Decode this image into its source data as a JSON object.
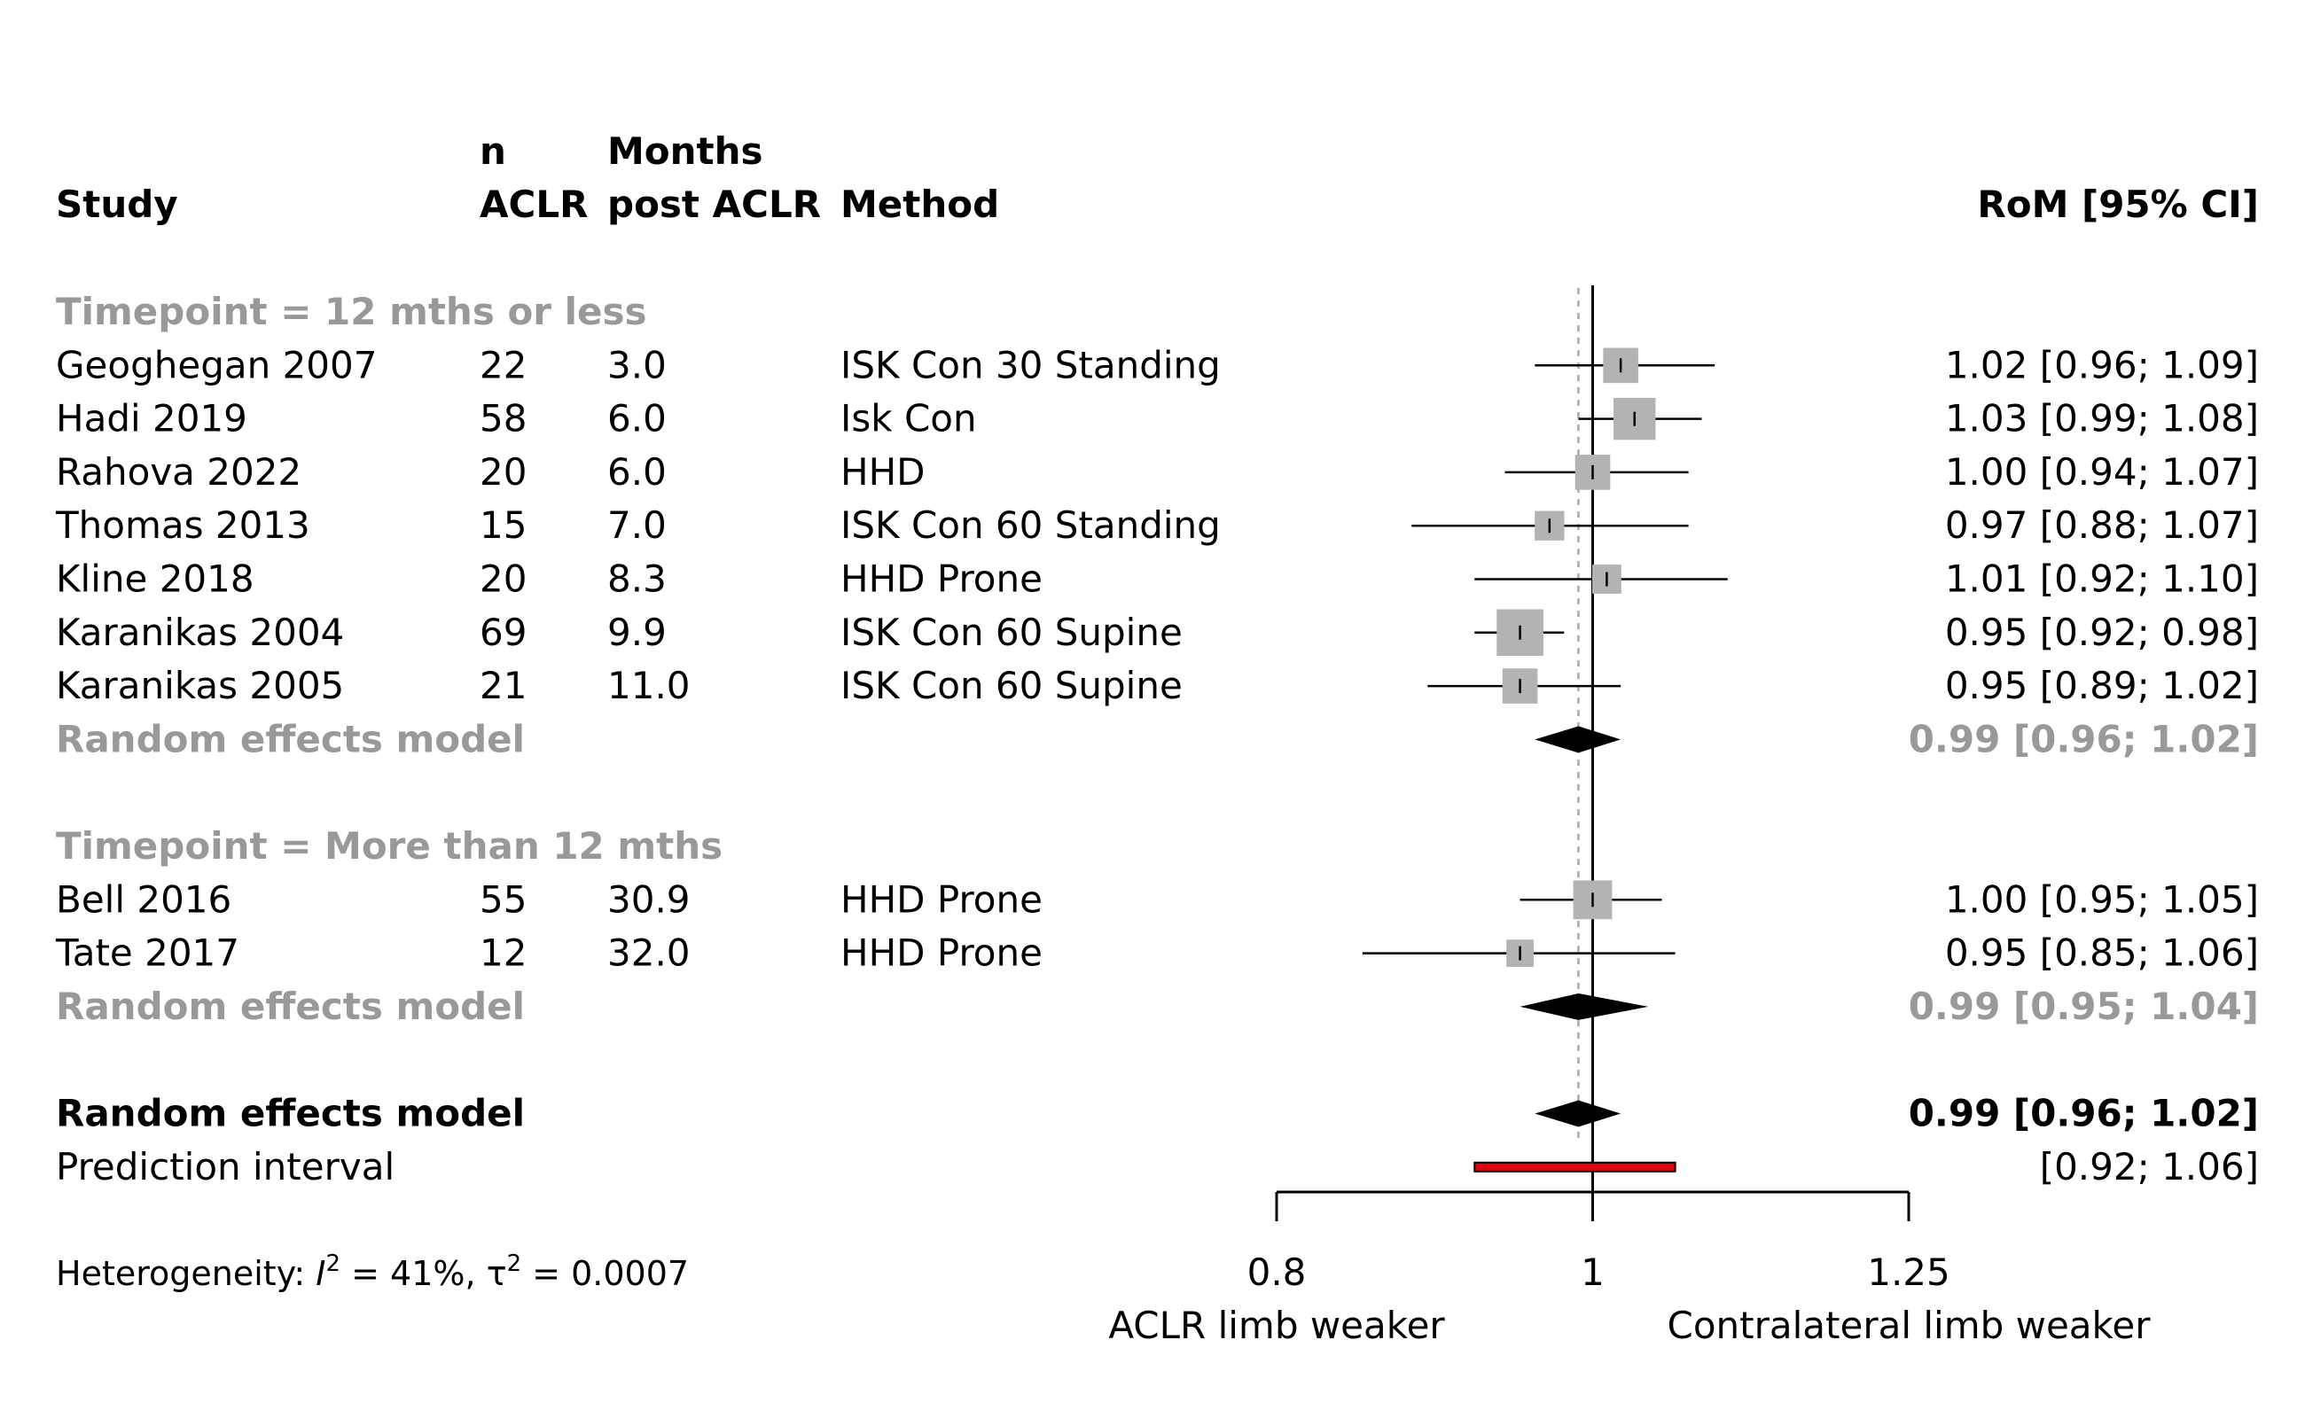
{
  "chart_data": {
    "type": "forest",
    "headers": {
      "study": "Study",
      "n_line1": "n",
      "n_line2": "ACLR",
      "months_line1": "Months",
      "months_line2": "post ACLR",
      "method": "Method",
      "effect": "RoM [95% CI]"
    },
    "x_axis": {
      "scale": "log",
      "ticks": [
        0.8,
        1,
        1.25
      ],
      "tick_labels": [
        "0.8",
        "1",
        "1.25"
      ],
      "xlim": [
        0.8,
        1.25
      ],
      "left_label": "ACLR limb weaker",
      "right_label": "Contralateral limb weaker",
      "null_line": 1
    },
    "groups": [
      {
        "label": "Timepoint = 12 mths or less",
        "studies": [
          {
            "study": "Geoghegan 2007",
            "n": "22",
            "months": "3.0",
            "method": "ISK Con 30 Standing",
            "est": 1.02,
            "lo": 0.96,
            "hi": 1.09,
            "weight": 3.0,
            "ci_text": "1.02 [0.96; 1.09]"
          },
          {
            "study": "Hadi 2019",
            "n": "58",
            "months": "6.0",
            "method": "Isk Con",
            "est": 1.03,
            "lo": 0.99,
            "hi": 1.08,
            "weight": 4.5,
            "ci_text": "1.03 [0.99; 1.08]"
          },
          {
            "study": "Rahova 2022",
            "n": "20",
            "months": "6.0",
            "method": "HHD",
            "est": 1.0,
            "lo": 0.94,
            "hi": 1.07,
            "weight": 3.0,
            "ci_text": "1.00 [0.94; 1.07]"
          },
          {
            "study": "Thomas 2013",
            "n": "15",
            "months": "7.0",
            "method": "ISK Con 60 Standing",
            "est": 0.97,
            "lo": 0.88,
            "hi": 1.07,
            "weight": 1.8,
            "ci_text": "0.97 [0.88; 1.07]"
          },
          {
            "study": "Kline 2018",
            "n": "20",
            "months": "8.3",
            "method": "HHD Prone",
            "est": 1.01,
            "lo": 0.92,
            "hi": 1.1,
            "weight": 1.7,
            "ci_text": "1.01 [0.92; 1.10]"
          },
          {
            "study": "Karanikas 2004",
            "n": "69",
            "months": "9.9",
            "method": "ISK Con 60 Supine",
            "est": 0.95,
            "lo": 0.92,
            "hi": 0.98,
            "weight": 5.5,
            "ci_text": "0.95 [0.92; 0.98]"
          },
          {
            "study": "Karanikas 2005",
            "n": "21",
            "months": "11.0",
            "method": "ISK Con 60 Supine",
            "est": 0.95,
            "lo": 0.89,
            "hi": 1.02,
            "weight": 3.0,
            "ci_text": "0.95 [0.89; 1.02]"
          }
        ],
        "pooled": {
          "label": "Random effects model",
          "est": 0.99,
          "lo": 0.96,
          "hi": 1.02,
          "ci_text": "0.99 [0.96; 1.02]"
        }
      },
      {
        "label": "Timepoint = More than 12 mths",
        "studies": [
          {
            "study": "Bell 2016",
            "n": "55",
            "months": "30.9",
            "method": "HHD Prone",
            "est": 1.0,
            "lo": 0.95,
            "hi": 1.05,
            "weight": 3.8,
            "ci_text": "1.00 [0.95; 1.05]"
          },
          {
            "study": "Tate 2017",
            "n": "12",
            "months": "32.0",
            "method": "HHD Prone",
            "est": 0.95,
            "lo": 0.85,
            "hi": 1.06,
            "weight": 1.3,
            "ci_text": "0.95 [0.85; 1.06]"
          }
        ],
        "pooled": {
          "label": "Random effects model",
          "est": 0.99,
          "lo": 0.95,
          "hi": 1.04,
          "ci_text": "0.99 [0.95; 1.04]"
        }
      }
    ],
    "overall": {
      "label": "Random effects model",
      "est": 0.99,
      "lo": 0.96,
      "hi": 1.02,
      "ci_text": "0.99 [0.96; 1.02]"
    },
    "prediction_interval": {
      "label": "Prediction interval",
      "lo": 0.92,
      "hi": 1.06,
      "ci_text": "[0.92; 1.06]"
    },
    "heterogeneity": {
      "prefix": "Heterogeneity: ",
      "i2_symbol": "I",
      "i2_value": " = 41%, ",
      "tau2_symbol": "τ",
      "tau2_value": " = 0.0007",
      "superscript": "2"
    },
    "colors": {
      "square": "#b3b3b3",
      "subgroup_text": "#999999",
      "diamond": "#000000",
      "prediction": "#e0000f",
      "pooled_line": "#aaaaaa"
    }
  }
}
